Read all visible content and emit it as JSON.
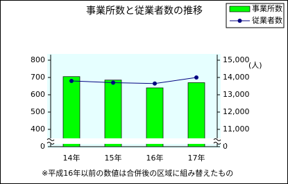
{
  "chart_data": {
    "type": "bar_line",
    "title": "事業所数と従業者数の推移",
    "categories": [
      "14年",
      "15年",
      "16年",
      "17年"
    ],
    "series": [
      {
        "name": "事業所数",
        "type": "bar",
        "color": "#00ff00",
        "values": [
          705,
          685,
          640,
          670
        ]
      },
      {
        "name": "従業者数",
        "type": "line",
        "color": "#000080",
        "axis": "y2",
        "values": [
          13800,
          13700,
          13650,
          14000
        ]
      }
    ],
    "ylim": [
      0,
      800
    ],
    "yticks": [
      0,
      400,
      500,
      600,
      700,
      800
    ],
    "y2lim": [
      0,
      15000
    ],
    "y2ticks": [
      0,
      {
        "value": 11000,
        "label": "11,000"
      },
      {
        "value": 12000,
        "label": "12,000"
      },
      {
        "value": 13000,
        "label": "13,000"
      },
      {
        "value": 14000,
        "label": "14,000"
      },
      {
        "value": 15000,
        "label": "15,000"
      }
    ],
    "y2label": "(人)",
    "axis_break": true,
    "legend": "top-right",
    "note": "※平成16年以前の数値は合併後の区域に組み替えたもの"
  }
}
